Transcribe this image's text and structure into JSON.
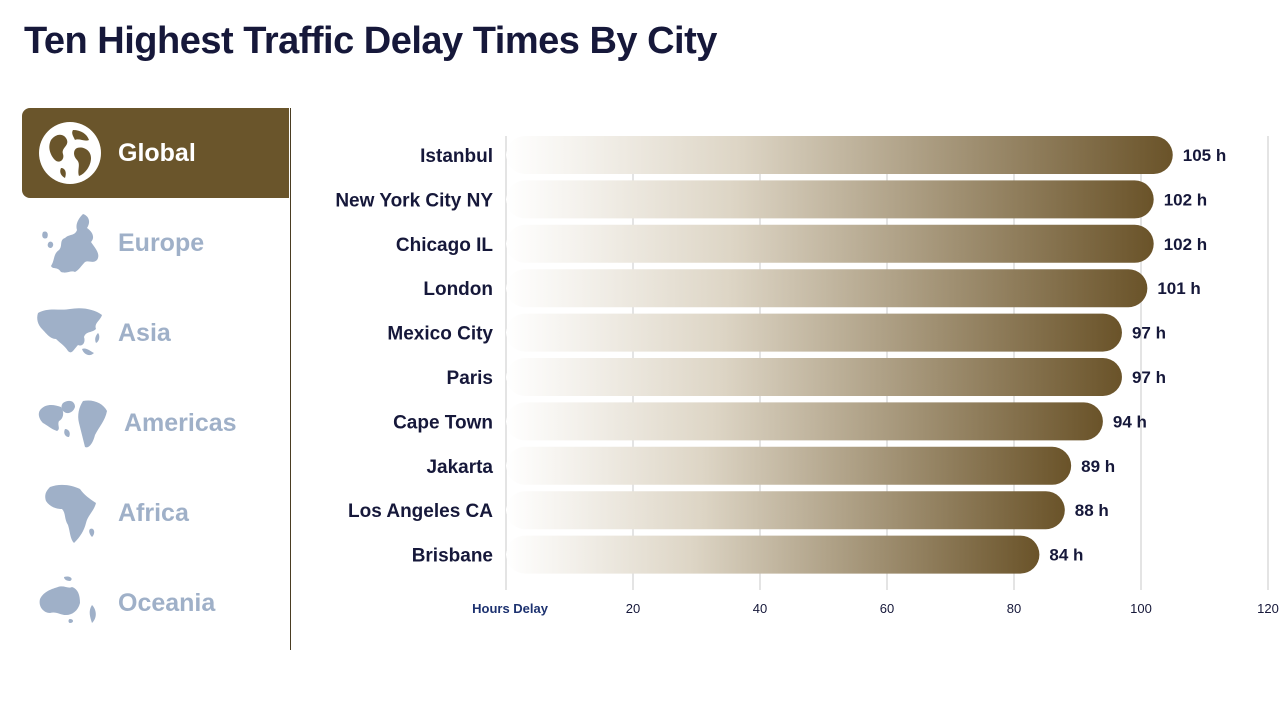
{
  "page": {
    "title": "Ten Highest Traffic Delay Times By City"
  },
  "sidebar": {
    "items": [
      {
        "label": "Global",
        "icon": "globe-icon",
        "active": true
      },
      {
        "label": "Europe",
        "icon": "europe-map-icon",
        "active": false
      },
      {
        "label": "Asia",
        "icon": "asia-map-icon",
        "active": false
      },
      {
        "label": "Americas",
        "icon": "americas-map-icon",
        "active": false
      },
      {
        "label": "Africa",
        "icon": "africa-map-icon",
        "active": false
      },
      {
        "label": "Oceania",
        "icon": "oceania-map-icon",
        "active": false
      }
    ]
  },
  "colors": {
    "title": "#16183a",
    "active_tab": "#6a552b",
    "inactive_label": "#9fb0c8",
    "bar_start": "#ffffff",
    "bar_end": "#6a5329",
    "axis_label": "#1d3270"
  },
  "chart_data": {
    "type": "bar",
    "orientation": "horizontal",
    "categories": [
      "Istanbul",
      "New York City NY",
      "Chicago IL",
      "London",
      "Mexico City",
      "Paris",
      "Cape Town",
      "Jakarta",
      "Los Angeles CA",
      "Brisbane"
    ],
    "values": [
      105,
      102,
      102,
      101,
      97,
      97,
      94,
      89,
      88,
      84
    ],
    "value_labels": [
      "105 h",
      "102 h",
      "102 h",
      "101 h",
      "97 h",
      "97 h",
      "94 h",
      "89 h",
      "88 h",
      "84 h"
    ],
    "xlabel": "Hours Delay",
    "xticks": [
      "20",
      "40",
      "60",
      "80",
      "100",
      "120"
    ],
    "xlim": [
      0,
      120
    ],
    "grid": true
  }
}
